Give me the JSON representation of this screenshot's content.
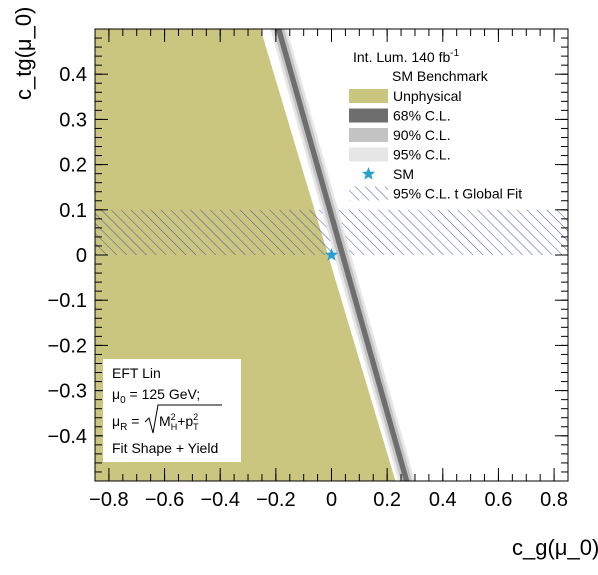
{
  "chart_data": {
    "type": "area",
    "xlabel": "c_g(μ_0)",
    "ylabel": "c_tg(μ_0)",
    "xlim": [
      -0.85,
      0.85
    ],
    "ylim": [
      -0.5,
      0.5
    ],
    "xticks": [
      {
        "value": -0.8,
        "label": "−0.8"
      },
      {
        "value": -0.6,
        "label": "−0.6"
      },
      {
        "value": -0.4,
        "label": "−0.4"
      },
      {
        "value": -0.2,
        "label": "−0.2"
      },
      {
        "value": 0,
        "label": "0"
      },
      {
        "value": 0.2,
        "label": "0.2"
      },
      {
        "value": 0.4,
        "label": "0.4"
      },
      {
        "value": 0.6,
        "label": "0.6"
      },
      {
        "value": 0.8,
        "label": "0.8"
      }
    ],
    "yticks": [
      {
        "value": 0.4,
        "label": "0.4"
      },
      {
        "value": 0.3,
        "label": "0.3"
      },
      {
        "value": 0.2,
        "label": "0.2"
      },
      {
        "value": 0.1,
        "label": "0.1"
      },
      {
        "value": 0,
        "label": "0"
      },
      {
        "value": -0.1,
        "label": "−0.1"
      },
      {
        "value": -0.2,
        "label": "−0.2"
      },
      {
        "value": -0.3,
        "label": "−0.3"
      },
      {
        "value": -0.4,
        "label": "−0.4"
      }
    ],
    "regions": {
      "unphysical_boundary": [
        [
          -0.255,
          0.5
        ],
        [
          0.23,
          -0.5
        ]
      ],
      "band_95": {
        "top_x": [
          -0.22,
          -0.16
        ],
        "bottom_x": [
          0.24,
          0.3
        ]
      },
      "band_90": {
        "top_x": [
          -0.21,
          -0.17
        ],
        "bottom_x": [
          0.25,
          0.29
        ]
      },
      "band_68": {
        "top_x": [
          -0.2,
          -0.18
        ],
        "bottom_x": [
          0.26,
          0.28
        ]
      },
      "global_fit_95_ctg": [
        0.0,
        0.1
      ]
    },
    "sm_point": {
      "x": 0,
      "y": 0
    },
    "colors": {
      "unphysical": "#cac680",
      "cl68": "#6e6e6e",
      "cl90": "#c4c4c4",
      "cl95": "#e6e6e6",
      "sm_star": "#2aa0d0",
      "hatch": "#4a52a8"
    },
    "legend": {
      "title_lines": [
        "Int. Lum. 140 fb",
        "-1",
        "SM Benchmark"
      ],
      "entries": [
        {
          "key": "unphysical",
          "label": "Unphysical"
        },
        {
          "key": "cl68",
          "label": "68% C.L."
        },
        {
          "key": "cl90",
          "label": "90% C.L."
        },
        {
          "key": "cl95",
          "label": "95% C.L."
        },
        {
          "key": "sm",
          "label": "SM"
        },
        {
          "key": "hatch",
          "label": "95% C.L. t Global Fit"
        }
      ]
    },
    "info_box": {
      "line1": "EFT Lin",
      "line2_pre": "μ",
      "line2_sub": "0",
      "line2_post": " = 125 GeV;",
      "line3_mu": "μ",
      "line3_sub": "R",
      "line3_eq": " = ",
      "line3_M": "M",
      "line3_M_sup": "2",
      "line3_M_sub": "H",
      "line3_plus": "+p",
      "line3_p_sup": "2",
      "line3_p_sub": "T",
      "line4": "Fit Shape + Yield"
    }
  }
}
